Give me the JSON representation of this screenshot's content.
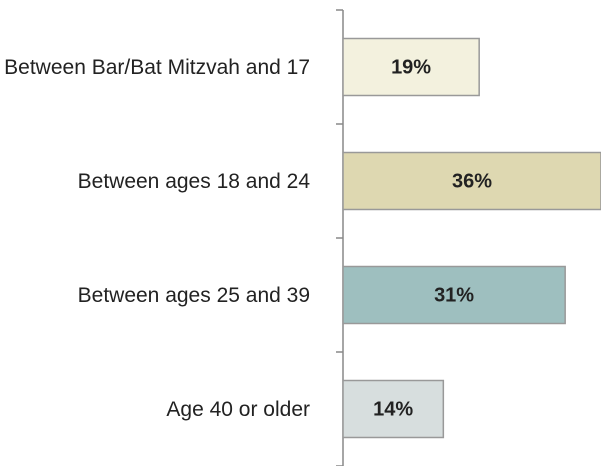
{
  "chart_data": {
    "type": "bar",
    "orientation": "horizontal",
    "categories": [
      "Between Bar/Bat Mitzvah and 17",
      "Between ages 18 and 24",
      "Between ages 25 and 39",
      "Age 40 or older"
    ],
    "values": [
      19,
      36,
      31,
      14
    ],
    "value_labels": [
      "19%",
      "36%",
      "31%",
      "14%"
    ],
    "colors": [
      "#f3f1de",
      "#ded8b1",
      "#9ebfbf",
      "#d7dede"
    ],
    "xlim": [
      0,
      36
    ]
  }
}
